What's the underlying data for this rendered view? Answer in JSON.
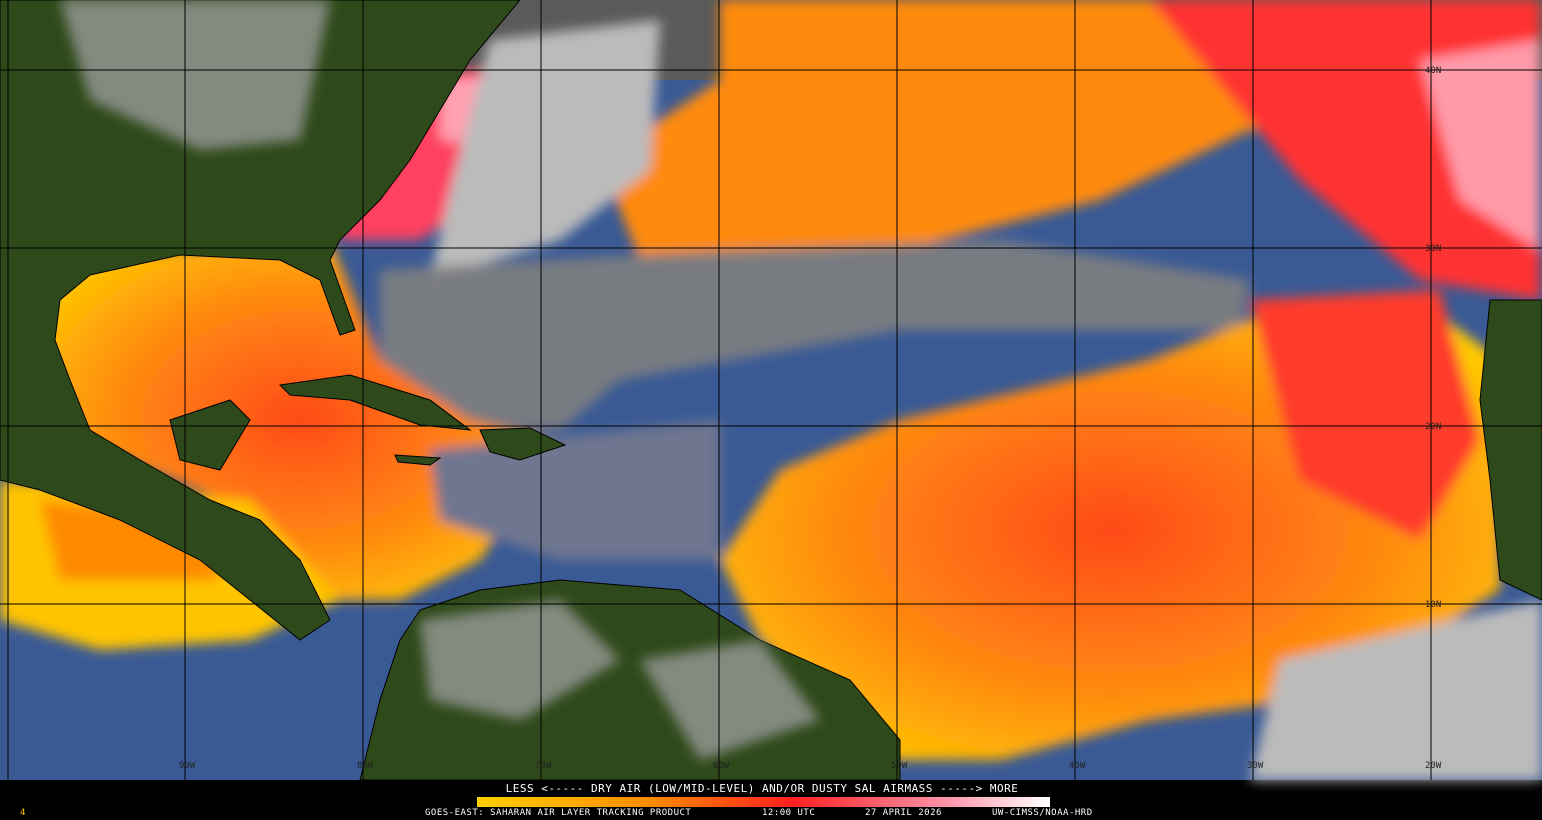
{
  "map": {
    "lat_labels": [
      "40N",
      "30N",
      "20N",
      "10N"
    ],
    "lon_labels": [
      "90W",
      "80W",
      "70W",
      "60W",
      "50W",
      "40W",
      "30W",
      "20W"
    ]
  },
  "legend": {
    "caption": "LESS <----- DRY AIR (LOW/MID-LEVEL) AND/OR DUSTY SAL AIRMASS -----> MORE"
  },
  "footer": {
    "index": "4",
    "product": "GOES-EAST: SAHARAN AIR LAYER TRACKING PRODUCT",
    "time": "12:00 UTC",
    "date": "27 APRIL 2026",
    "credit": "UW-CIMSS/NOAA-HRD"
  }
}
